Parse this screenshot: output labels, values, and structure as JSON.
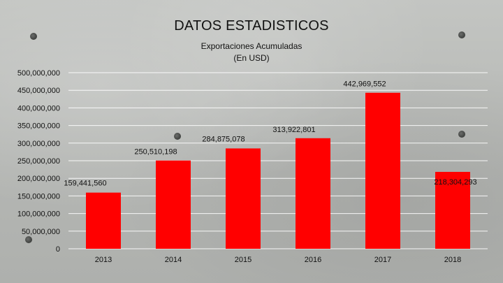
{
  "chart_data": {
    "type": "bar",
    "title": "DATOS ESTADISTICOS",
    "subtitle_lines": [
      "Exportaciones Acumuladas",
      "(En USD)"
    ],
    "categories": [
      "2013",
      "2014",
      "2015",
      "2016",
      "2017",
      "2018"
    ],
    "values": [
      159441560,
      250510198,
      284875078,
      313922801,
      442969552,
      218304293
    ],
    "data_labels": [
      "159,441,560",
      "250,510,198",
      "284,875,078",
      "313,922,801",
      "442,969,552",
      "218,304,293"
    ],
    "ylim": [
      0,
      500000000
    ],
    "yticks": [
      0,
      50000000,
      100000000,
      150000000,
      200000000,
      250000000,
      300000000,
      350000000,
      400000000,
      450000000,
      500000000
    ],
    "ytick_labels": [
      "0",
      "50,000,000",
      "100,000,000",
      "150,000,000",
      "200,000,000",
      "250,000,000",
      "300,000,000",
      "350,000,000",
      "400,000,000",
      "450,000,000",
      "500,000,000"
    ],
    "xlabel": "",
    "ylabel": "",
    "grid": true,
    "bar_color": "#ff0000",
    "grid_color": "#ffffff"
  }
}
